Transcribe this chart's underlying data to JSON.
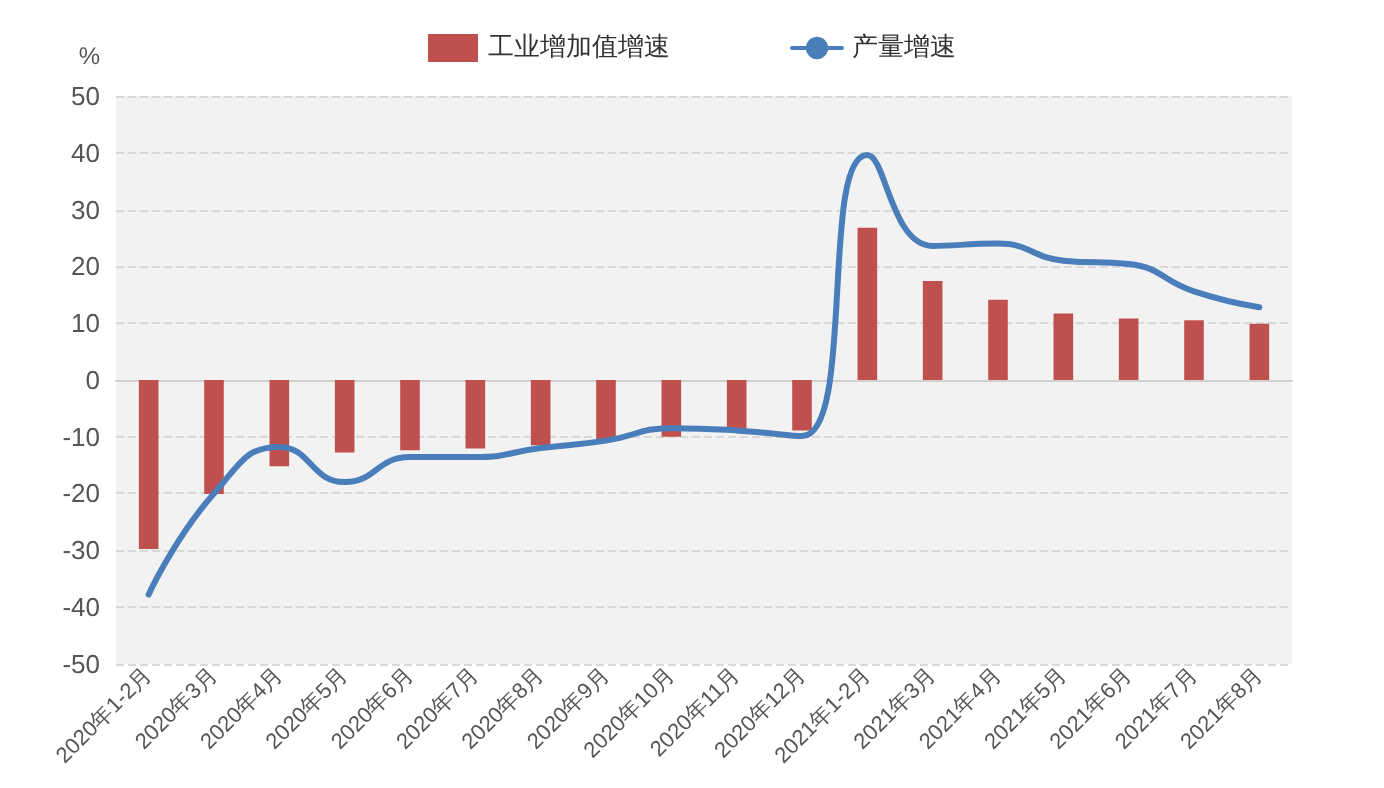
{
  "chart_data": {
    "type": "bar",
    "ylabel": "%",
    "categories": [
      "2020年1-2月",
      "2020年3月",
      "2020年4月",
      "2020年5月",
      "2020年6月",
      "2020年7月",
      "2020年8月",
      "2020年9月",
      "2020年10月",
      "2020年11月",
      "2020年12月",
      "2021年1-2月",
      "2021年3月",
      "2021年4月",
      "2021年5月",
      "2021年6月",
      "2021年7月",
      "2021年8月"
    ],
    "series": [
      {
        "name": "工业增加值增速",
        "color": "#c0504d",
        "values": [
          -29.8,
          -20.1,
          -15.2,
          -12.8,
          -12.4,
          -12.1,
          -11.5,
          -10.5,
          -10,
          -8.9,
          -8.9,
          26.8,
          17.4,
          14.1,
          11.7,
          10.8,
          10.5,
          9.9
        ]
      },
      {
        "name": "产量增速",
        "type": "line",
        "color": "#4a7ebb",
        "marker": "none",
        "values": [
          -37.8,
          -20,
          -11.8,
          -18,
          -13.6,
          -13.6,
          -12,
          -10.7,
          -8.5,
          -8.9,
          -9.9,
          39.6,
          23.6,
          24,
          21,
          20.4,
          15.6,
          12.8
        ]
      }
    ],
    "ylim": [
      -50,
      50
    ],
    "yticks": [
      -50,
      -40,
      -30,
      -20,
      -10,
      0,
      10,
      20,
      30,
      40,
      50
    ],
    "grid": "y",
    "legend": "top"
  }
}
